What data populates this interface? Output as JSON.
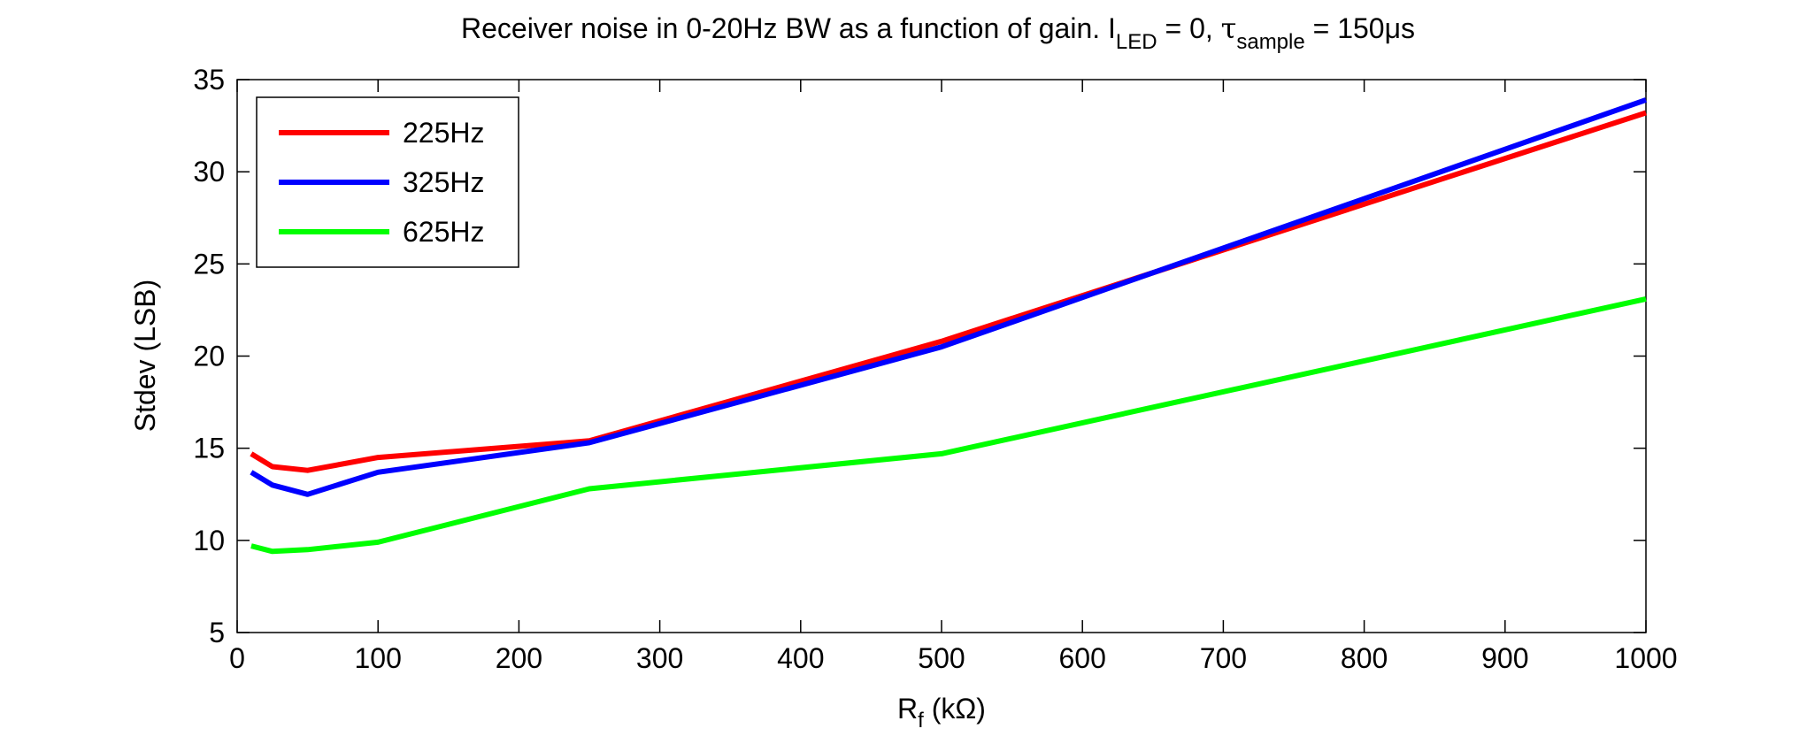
{
  "chart_data": {
    "type": "line",
    "title": {
      "main": "Receiver noise in 0-20Hz BW as a function of gain. I",
      "sub1": "LED",
      "mid": " = 0, ",
      "tau": "τ",
      "sub2": "sample",
      "end": " = 150μs"
    },
    "xlabel": {
      "main": "R",
      "sub": "f",
      "rest": " (kΩ)"
    },
    "ylabel": "Stdev (LSB)",
    "xlim": [
      0,
      1000
    ],
    "ylim": [
      5,
      35
    ],
    "xticks": [
      "0",
      "100",
      "200",
      "300",
      "400",
      "500",
      "600",
      "700",
      "800",
      "900",
      "1000"
    ],
    "yticks": [
      "5",
      "10",
      "15",
      "20",
      "25",
      "30",
      "35"
    ],
    "grid": false,
    "legend_position": "top-left",
    "x": [
      10,
      25,
      50,
      100,
      250,
      500,
      1000
    ],
    "series": [
      {
        "name": "225Hz",
        "color": "#ff0000",
        "values": [
          14.7,
          14.0,
          13.8,
          14.5,
          15.4,
          20.8,
          33.2
        ]
      },
      {
        "name": "325Hz",
        "color": "#0000ff",
        "values": [
          13.7,
          13.0,
          12.5,
          13.7,
          15.3,
          20.5,
          33.9
        ]
      },
      {
        "name": "625Hz",
        "color": "#00ff00",
        "values": [
          9.7,
          9.4,
          9.5,
          9.9,
          12.8,
          14.7,
          23.1
        ]
      }
    ]
  }
}
